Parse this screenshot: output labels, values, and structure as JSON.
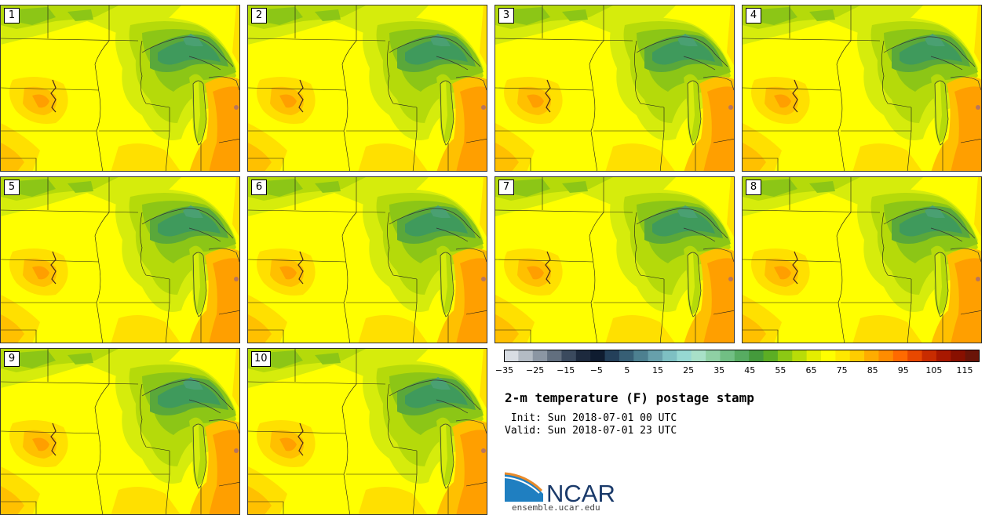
{
  "stamps": [
    "1",
    "2",
    "3",
    "4",
    "5",
    "6",
    "7",
    "8",
    "9",
    "10"
  ],
  "colorbar": {
    "colors": [
      "#d8dde3",
      "#b3bbc4",
      "#8b96a3",
      "#626f7f",
      "#3b4a5e",
      "#1d2a3e",
      "#0f1c30",
      "#24405a",
      "#375f75",
      "#4d8090",
      "#67a0ab",
      "#7ec0c3",
      "#96d8d2",
      "#a8e0c8",
      "#8fd0a4",
      "#71bf84",
      "#57ac62",
      "#449a3c",
      "#5cae24",
      "#8cc814",
      "#b8dc08",
      "#e4ee00",
      "#ffff00",
      "#ffe800",
      "#ffcc00",
      "#ffac00",
      "#ff8c00",
      "#ff6a00",
      "#e84800",
      "#c82c00",
      "#a81800",
      "#881000",
      "#6a1408"
    ],
    "tick_labels": [
      "−35",
      "−25",
      "−15",
      "−5",
      "5",
      "15",
      "25",
      "35",
      "45",
      "55",
      "65",
      "75",
      "85",
      "95",
      "105",
      "115"
    ]
  },
  "title": "2-m temperature (F) postage stamp",
  "init": " Init: Sun 2018-07-01 00 UTC",
  "valid": "Valid: Sun 2018-07-01 23 UTC",
  "logo": {
    "text": "NCAR",
    "url": "ensemble.ucar.edu"
  }
}
